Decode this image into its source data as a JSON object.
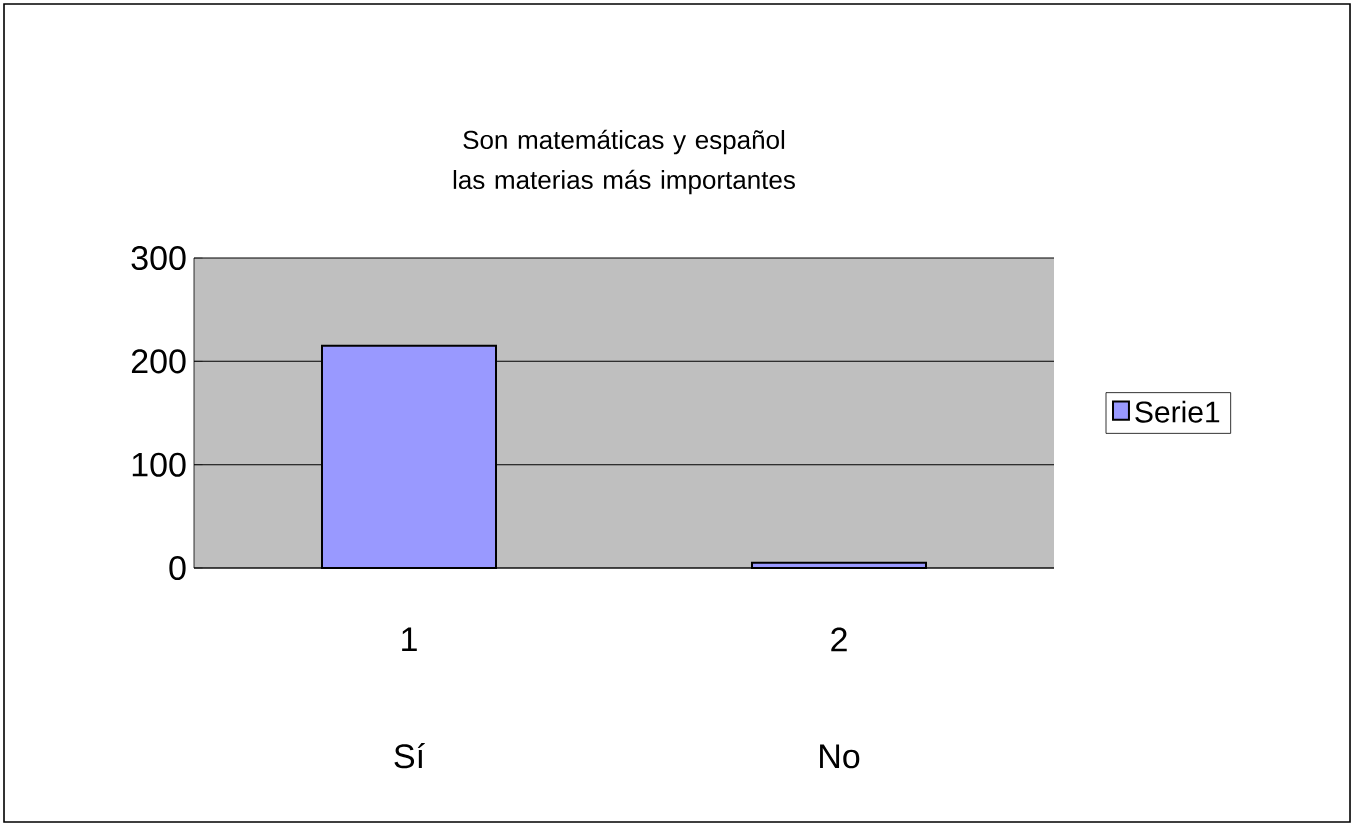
{
  "chart_data": {
    "type": "bar",
    "title": "Son matemáticas y español las materias más importantes",
    "categories": [
      "1",
      "2"
    ],
    "series": [
      {
        "name": "Serie1",
        "color": "#9999ff",
        "values": [
          215,
          5
        ]
      }
    ],
    "ylim": [
      0,
      300
    ],
    "yticks": [
      0,
      100,
      200,
      300
    ],
    "grid": "y",
    "legend": "right",
    "annotations": [
      "Sí",
      "No"
    ]
  }
}
